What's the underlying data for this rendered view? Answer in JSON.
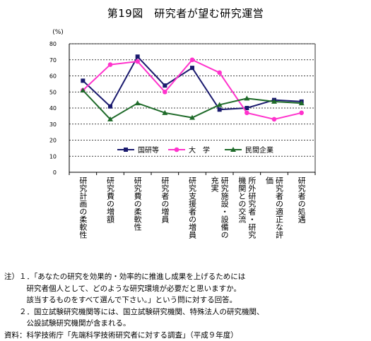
{
  "figure_title": "第19図　研究者が望む研究運営",
  "chart_data": {
    "type": "line",
    "title": "第19図　研究者が望む研究運営",
    "ylabel": "(%)",
    "ylim": [
      0,
      80
    ],
    "yticks": [
      0,
      10,
      20,
      30,
      40,
      50,
      60,
      70,
      80
    ],
    "grid": true,
    "legend_position": "inside-lower",
    "categories": [
      "研究計画の柔軟性",
      "研究費の増額",
      "研究費の柔軟性",
      "研究者の増員",
      "研究支援者の増員",
      "研究施設・設備の充実",
      "所外研究者・研究機関との交流",
      "研究者の適正な評価",
      "研究者の処遇"
    ],
    "category_columns": [
      [
        "研究計画の柔軟性"
      ],
      [
        "研究費の増額"
      ],
      [
        "研究費の柔軟性"
      ],
      [
        "研究者の増員"
      ],
      [
        "研究支援者の増員"
      ],
      [
        "研究施設・設備の",
        "充実"
      ],
      [
        "所外研究者・研究",
        "機関との交流"
      ],
      [
        "研究者の適正な評",
        "価"
      ],
      [
        "研究者の処遇"
      ]
    ],
    "series": [
      {
        "name": "国研等",
        "color": "#1a1a6e",
        "marker": "square",
        "values": [
          57,
          41,
          72,
          54,
          65,
          39,
          40,
          45,
          44
        ]
      },
      {
        "name": "大　学",
        "color": "#ff33cc",
        "marker": "circle",
        "values": [
          51,
          67,
          69,
          50,
          70,
          62,
          37,
          33,
          37
        ]
      },
      {
        "name": "民間企業",
        "color": "#1f6b2a",
        "marker": "triangle",
        "values": [
          51,
          33,
          43,
          37,
          34,
          42,
          46,
          44,
          43
        ]
      }
    ]
  },
  "notes": [
    "注）１．「あなたの研究を効果的・効率的に推進し成果を上げるためには",
    "　　　研究者個人として、どのような研究環境が必要だと思いますか。",
    "　　　該当するものをすべて選んで下さい。」という問に対する回答。",
    "　　２．国立試験研究機関等には、国立試験研究機関、特殊法人の研究機関、",
    "　　　公設試験研究機関が含まれる。",
    "資料：科学技術庁「先端科学技術研究者に対する調査」（平成９年度）"
  ]
}
